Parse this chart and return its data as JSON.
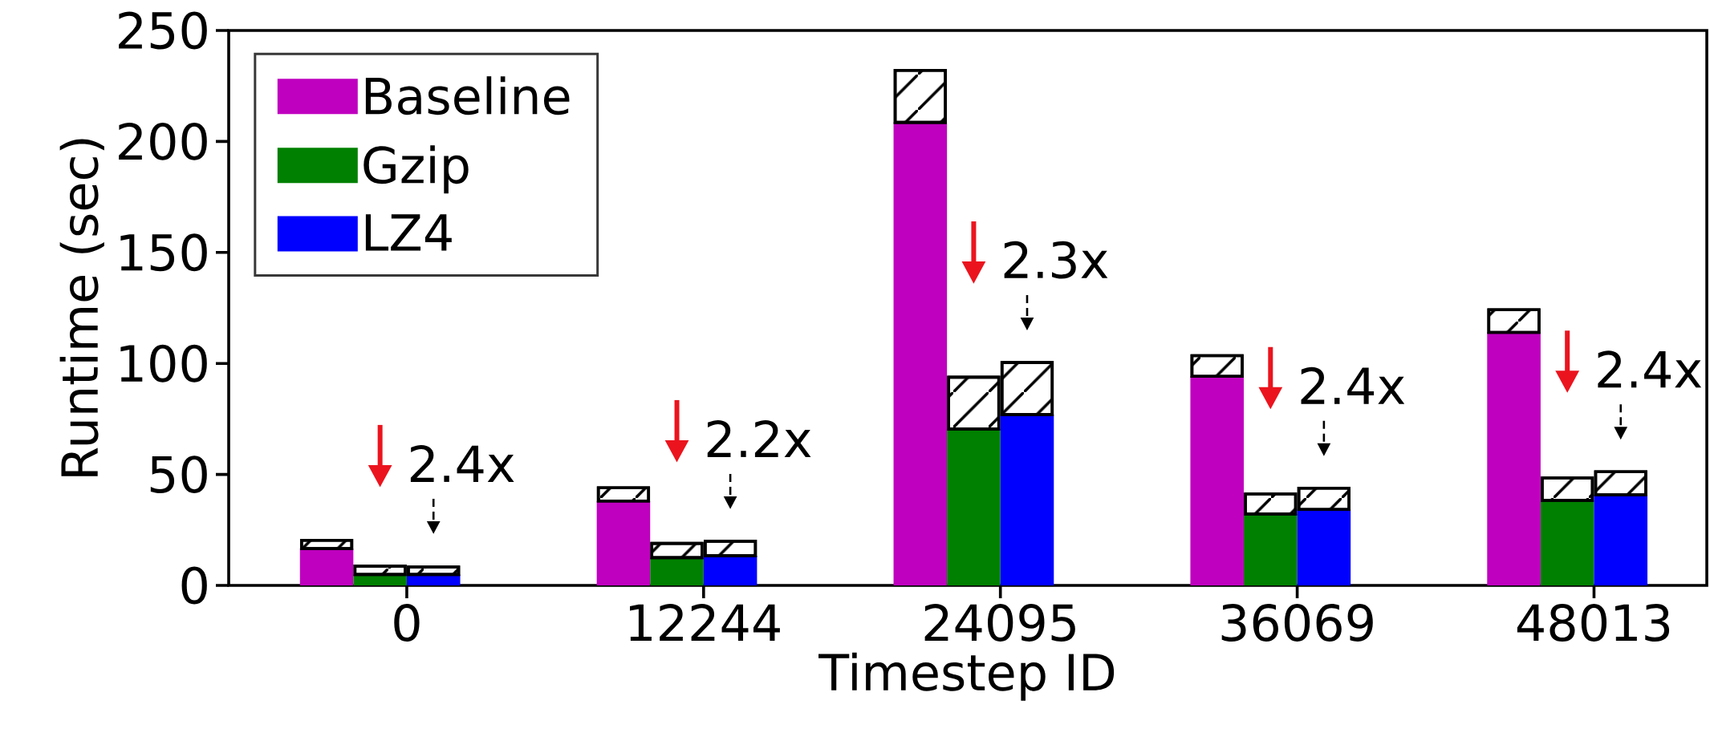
{
  "chart_data": {
    "type": "bar",
    "xlabel": "Timestep ID",
    "ylabel": "Runtime (sec)",
    "categories": [
      "0",
      "12244",
      "24095",
      "36069",
      "48013"
    ],
    "series": [
      {
        "name": "Baseline",
        "color": "#bf00bf",
        "values": [
          16.6,
          38,
          208.6,
          94.2,
          114
        ]
      },
      {
        "color": "#ffffff",
        "base": [
          16.6,
          38,
          208.6,
          94.2,
          114
        ],
        "values": [
          3.7,
          6,
          23.4,
          9.3,
          10.2
        ]
      },
      {
        "name": "Gzip",
        "color": "#008000",
        "values": [
          4.9,
          12.5,
          70.5,
          32.2,
          38.3
        ]
      },
      {
        "color": "#ffffff",
        "base": [
          4.9,
          12.5,
          70.5,
          32.2,
          38.3
        ],
        "values": [
          3.8,
          6.4,
          23.3,
          9,
          10.1
        ]
      },
      {
        "name": "LZ4",
        "color": "#0000ff",
        "values": [
          4.9,
          13.4,
          77,
          34.2,
          40.8
        ]
      },
      {
        "color": "#ffffff",
        "base": [
          4.9,
          13.4,
          77,
          34.2,
          40.8
        ],
        "values": [
          3.4,
          6.5,
          23.4,
          9.6,
          10.4
        ]
      }
    ],
    "annotations": [
      "2.4x",
      "2.2x",
      "2.3x",
      "2.4x",
      "2.4x"
    ],
    "ylim": [
      0,
      250
    ],
    "yticks": [
      0,
      50,
      100,
      150,
      200,
      250
    ],
    "legend": "top left"
  }
}
